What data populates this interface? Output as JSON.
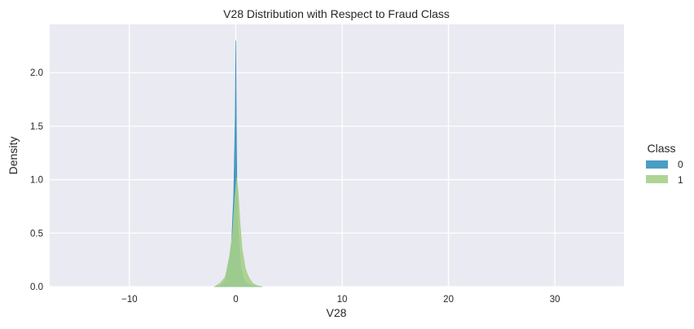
{
  "chart_data": {
    "type": "area",
    "title": "V28 Distribution with Respect to Fraud Class",
    "xlabel": "V28",
    "ylabel": "Density",
    "xlim": [
      -17.5,
      36.5
    ],
    "ylim": [
      0,
      2.45
    ],
    "xticks": [
      -10,
      0,
      10,
      20,
      30
    ],
    "xtick_labels": [
      "−10",
      "0",
      "10",
      "20",
      "30"
    ],
    "yticks": [
      0.0,
      0.5,
      1.0,
      1.5,
      2.0
    ],
    "ytick_labels": [
      "0.0",
      "0.5",
      "1.0",
      "1.5",
      "2.0"
    ],
    "grid": true,
    "legend": {
      "title": "Class",
      "placement": "right"
    },
    "series": [
      {
        "name": "0",
        "color": "#2c8cba",
        "x": [
          -2.0,
          -1.5,
          -1.0,
          -0.7,
          -0.4,
          -0.2,
          -0.05,
          0.0,
          0.05,
          0.1,
          0.2,
          0.35,
          0.5,
          0.8,
          1.2,
          1.8,
          2.5
        ],
        "y": [
          0.0,
          0.01,
          0.05,
          0.18,
          0.4,
          0.85,
          1.6,
          2.3,
          1.55,
          1.0,
          0.6,
          0.33,
          0.17,
          0.06,
          0.02,
          0.005,
          0.0
        ]
      },
      {
        "name": "1",
        "color": "#a6cf8a",
        "x": [
          -2.0,
          -1.5,
          -1.0,
          -0.6,
          -0.3,
          -0.1,
          0.1,
          0.25,
          0.4,
          0.6,
          0.9,
          1.2,
          1.6,
          2.0,
          2.5
        ],
        "y": [
          0.0,
          0.03,
          0.09,
          0.28,
          0.5,
          0.82,
          1.02,
          0.85,
          0.6,
          0.35,
          0.17,
          0.09,
          0.03,
          0.01,
          0.0
        ]
      }
    ]
  }
}
